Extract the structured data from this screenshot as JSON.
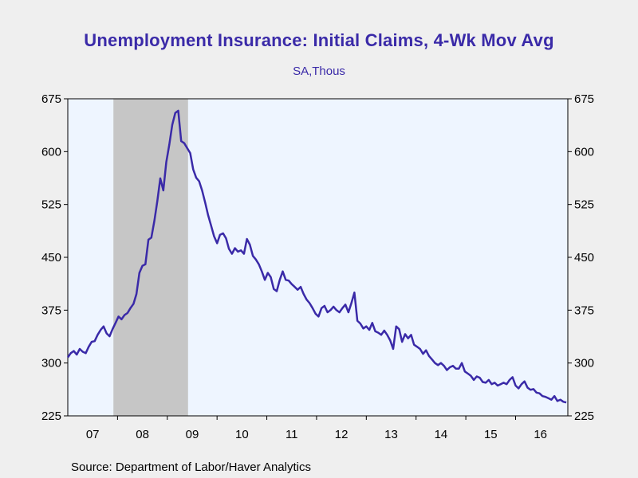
{
  "chart_data": {
    "type": "line",
    "title": "Unemployment Insurance: Initial Claims, 4-Wk Mov Avg",
    "subtitle": "SA,Thous",
    "source": "Source:  Department of Labor/Haver Analytics",
    "ylim": [
      225,
      675
    ],
    "yticks": [
      "675",
      "600",
      "525",
      "450",
      "375",
      "300",
      "225"
    ],
    "xlim": [
      2007.0,
      2017.05
    ],
    "xtick_labels": [
      "07",
      "08",
      "09",
      "10",
      "11",
      "12",
      "13",
      "14",
      "15",
      "16"
    ],
    "grid": false,
    "recession_shading": {
      "start": 2007.917,
      "end": 2009.417
    },
    "colors": {
      "line": "#3a2aa8",
      "recession": "#c6c6c6",
      "plot_bg": "#eef5ff",
      "title": "#3a2aa8"
    },
    "series": [
      {
        "x": [
          2007.0,
          2007.06,
          2007.12,
          2007.18,
          2007.24,
          2007.3,
          2007.36,
          2007.42,
          2007.48,
          2007.54,
          2007.6,
          2007.66,
          2007.72,
          2007.78,
          2007.84,
          2007.9,
          2007.96,
          2008.02,
          2008.08,
          2008.14,
          2008.2,
          2008.26,
          2008.32,
          2008.38,
          2008.44,
          2008.5,
          2008.56,
          2008.62,
          2008.68,
          2008.74,
          2008.8,
          2008.86,
          2008.92,
          2008.98,
          2009.04,
          2009.1,
          2009.16,
          2009.22,
          2009.28,
          2009.34,
          2009.4,
          2009.46,
          2009.52,
          2009.58,
          2009.64,
          2009.7,
          2009.76,
          2009.82,
          2009.88,
          2009.94,
          2010.0,
          2010.06,
          2010.12,
          2010.18,
          2010.24,
          2010.3,
          2010.36,
          2010.42,
          2010.48,
          2010.54,
          2010.6,
          2010.66,
          2010.72,
          2010.78,
          2010.84,
          2010.9,
          2010.96,
          2011.02,
          2011.08,
          2011.14,
          2011.2,
          2011.26,
          2011.32,
          2011.38,
          2011.44,
          2011.5,
          2011.56,
          2011.62,
          2011.68,
          2011.74,
          2011.8,
          2011.86,
          2011.92,
          2011.98,
          2012.04,
          2012.1,
          2012.16,
          2012.22,
          2012.28,
          2012.34,
          2012.4,
          2012.46,
          2012.52,
          2012.58,
          2012.64,
          2012.7,
          2012.76,
          2012.82,
          2012.88,
          2012.94,
          2013.0,
          2013.06,
          2013.12,
          2013.18,
          2013.24,
          2013.3,
          2013.36,
          2013.42,
          2013.48,
          2013.54,
          2013.6,
          2013.66,
          2013.72,
          2013.78,
          2013.84,
          2013.9,
          2013.96,
          2014.02,
          2014.08,
          2014.14,
          2014.2,
          2014.26,
          2014.32,
          2014.38,
          2014.44,
          2014.5,
          2014.56,
          2014.62,
          2014.68,
          2014.74,
          2014.8,
          2014.86,
          2014.92,
          2014.98,
          2015.04,
          2015.1,
          2015.16,
          2015.22,
          2015.28,
          2015.34,
          2015.4,
          2015.46,
          2015.52,
          2015.58,
          2015.64,
          2015.7,
          2015.76,
          2015.82,
          2015.88,
          2015.94,
          2016.0,
          2016.06,
          2016.12,
          2016.18,
          2016.24,
          2016.3,
          2016.36,
          2016.42,
          2016.48,
          2016.54,
          2016.6,
          2016.66,
          2016.72,
          2016.78,
          2016.84,
          2016.9,
          2016.96,
          2017.02
        ],
        "values": [
          308,
          314,
          317,
          312,
          320,
          316,
          314,
          323,
          330,
          331,
          340,
          347,
          352,
          342,
          338,
          348,
          357,
          366,
          362,
          368,
          371,
          378,
          384,
          398,
          428,
          438,
          440,
          475,
          478,
          502,
          530,
          562,
          545,
          585,
          610,
          638,
          655,
          658,
          615,
          612,
          605,
          598,
          575,
          563,
          558,
          545,
          528,
          510,
          495,
          480,
          470,
          482,
          484,
          477,
          462,
          455,
          463,
          458,
          460,
          455,
          476,
          468,
          452,
          447,
          440,
          430,
          418,
          428,
          422,
          405,
          402,
          418,
          430,
          418,
          417,
          412,
          408,
          404,
          408,
          398,
          390,
          385,
          378,
          370,
          366,
          378,
          381,
          372,
          375,
          380,
          375,
          372,
          378,
          383,
          372,
          385,
          400,
          360,
          356,
          349,
          352,
          347,
          357,
          345,
          343,
          340,
          346,
          340,
          332,
          320,
          352,
          348,
          330,
          341,
          335,
          340,
          326,
          323,
          320,
          313,
          318,
          310,
          305,
          300,
          297,
          300,
          296,
          290,
          294,
          296,
          292,
          292,
          300,
          288,
          285,
          282,
          276,
          281,
          279,
          273,
          272,
          276,
          270,
          272,
          268,
          270,
          272,
          270,
          276,
          280,
          268,
          264,
          270,
          274,
          265,
          262,
          263,
          258,
          257,
          253,
          252,
          250,
          248,
          253,
          246,
          248,
          245,
          244
        ]
      }
    ]
  }
}
